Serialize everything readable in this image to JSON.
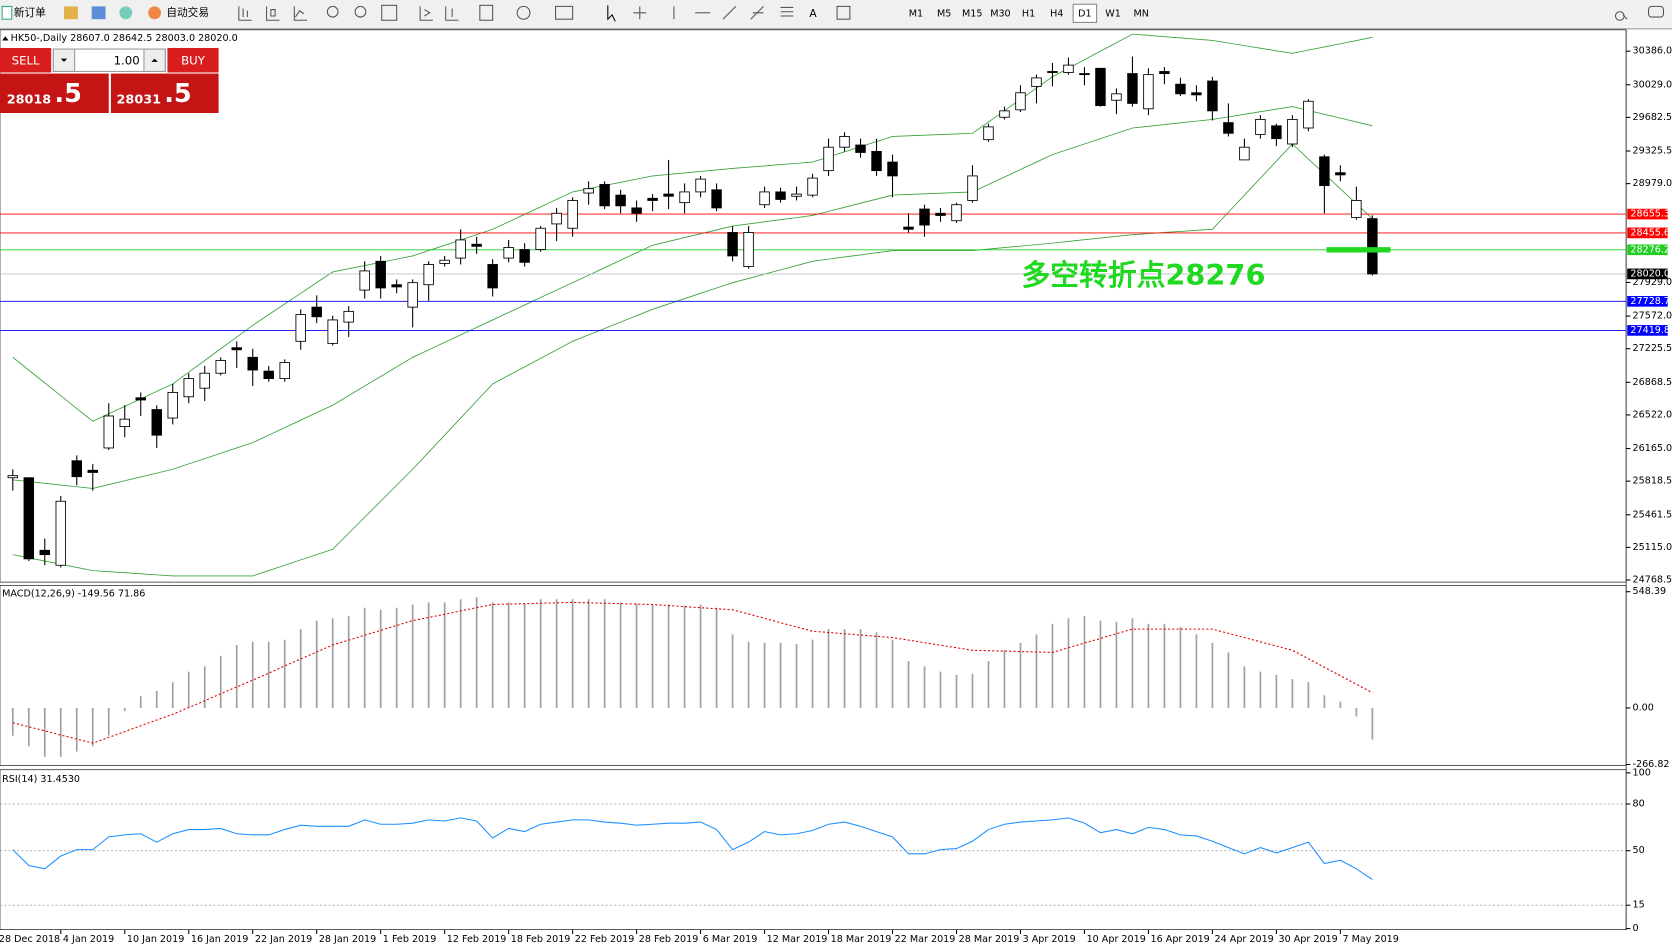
{
  "toolbar": {
    "new_order": "新订单",
    "auto_trading": "自动交易",
    "timeframes": [
      "M1",
      "M5",
      "M15",
      "M30",
      "H1",
      "H4",
      "D1",
      "W1",
      "MN"
    ],
    "active_timeframe": 6
  },
  "trade": {
    "sell": "SELL",
    "buy": "BUY",
    "volume": "1.00",
    "bid": "28018",
    "bid_frac": ".5",
    "ask": "28031",
    "ask_frac": ".5"
  },
  "chart": {
    "header": "HK50-,Daily  28607.0 28642.5 28003.0 28020.0",
    "ylim": [
      24746,
      30612.5
    ],
    "yticks": [
      {
        "value": 30386,
        "label": "30386.0"
      },
      {
        "value": 30029,
        "label": "30029.0"
      },
      29682.5,
      29325.5,
      {
        "value": 28979,
        "label": "28979.0"
      },
      {
        "value": 27929,
        "label": "27929.0"
      },
      {
        "value": 27572,
        "label": "27572.0"
      },
      27225.5,
      26868.5,
      {
        "value": 26522,
        "label": "26522.0"
      },
      {
        "value": 26165,
        "label": "26165.0"
      },
      25818.5,
      25461.5,
      {
        "value": 25115,
        "label": "25115.0"
      },
      24768.5
    ],
    "up_color": "#ffffff",
    "down_color": "#000000",
    "open": [
      25855,
      25855,
      25084,
      24925,
      26035,
      25934,
      26171,
      26398,
      26704,
      26579,
      26489,
      26715,
      26806,
      26965,
      27236,
      27134,
      26987,
      26908,
      27304,
      27667,
      27282,
      27508,
      27848,
      28154,
      27905,
      27667,
      27905,
      28131,
      28188,
      28335,
      28120,
      28188,
      28279,
      28279,
      28551,
      28505,
      28879,
      28970,
      28857,
      28721,
      28823,
      28868,
      28777,
      28891,
      28913,
      28460,
      28098,
      28755,
      28891,
      28845,
      28857,
      29117,
      29366,
      29389,
      29321,
      29208,
      28517,
      28709,
      28664,
      28585,
      28800,
      29446,
      29684,
      29763,
      30012,
      30170,
      30159,
      30148,
      30204,
      29865,
      30148,
      29774,
      30170,
      30035,
      29944,
      30069,
      29627,
      29231,
      29502,
      29593,
      29400,
      29570,
      29264,
      29095,
      28619,
      28607
    ],
    "high": [
      25945,
      25855,
      25208,
      25662,
      26092,
      26002,
      26647,
      26625,
      26761,
      26625,
      26851,
      26965,
      27042,
      27134,
      27304,
      27225,
      27042,
      27112,
      27644,
      27792,
      27576,
      27678,
      28154,
      28211,
      27961,
      27961,
      28154,
      28211,
      28494,
      28415,
      28177,
      28381,
      28347,
      28528,
      28721,
      28834,
      29004,
      29004,
      28913,
      28800,
      28868,
      29231,
      28981,
      29061,
      28981,
      28528,
      28528,
      28947,
      28936,
      28947,
      29083,
      29457,
      29525,
      29457,
      29457,
      29287,
      28664,
      28755,
      28721,
      28777,
      29174,
      29616,
      29797,
      30024,
      30137,
      30261,
      30318,
      30216,
      30204,
      29990,
      30329,
      30204,
      30216,
      30103,
      30024,
      30114,
      29831,
      29457,
      29706,
      29616,
      29706,
      29876,
      29287,
      29174,
      28947,
      28642.5
    ],
    "low": [
      25718,
      24970,
      24925,
      24902,
      25775,
      25718,
      26149,
      26285,
      26511,
      26171,
      26421,
      26647,
      26670,
      26942,
      27021,
      26829,
      26874,
      26874,
      27214,
      27497,
      27259,
      27350,
      27758,
      27758,
      27814,
      27452,
      27735,
      28098,
      28120,
      28233,
      27780,
      28143,
      28098,
      28256,
      28369,
      28415,
      28755,
      28709,
      28664,
      28573,
      28687,
      28709,
      28664,
      28834,
      28687,
      28154,
      28075,
      28721,
      28777,
      28800,
      28834,
      29061,
      29321,
      29253,
      29061,
      28834,
      28460,
      28415,
      28573,
      28562,
      28777,
      29423,
      29661,
      29740,
      29831,
      30012,
      30137,
      30024,
      29797,
      29718,
      29797,
      29706,
      30035,
      29910,
      29854,
      29650,
      29480,
      29231,
      29457,
      29378,
      29366,
      29536,
      28664,
      29004,
      28596,
      28003
    ],
    "close": [
      25877,
      24993,
      25038,
      25605,
      25866,
      25911,
      26511,
      26477,
      26681,
      26307,
      26761,
      26908,
      26965,
      27100,
      27214,
      26999,
      26908,
      27078,
      27588,
      27565,
      27531,
      27622,
      28052,
      27871,
      27882,
      27927,
      28120,
      28165,
      28381,
      28313,
      27871,
      28301,
      28143,
      28505,
      28664,
      28800,
      28925,
      28743,
      28743,
      28664,
      28800,
      28845,
      28891,
      29027,
      28721,
      28211,
      28460,
      28891,
      28811,
      28868,
      29038,
      29366,
      29480,
      29310,
      29117,
      29061,
      28494,
      28539,
      28641,
      28755,
      29061,
      29582,
      29752,
      29944,
      30102,
      30159,
      30238,
      30137,
      29808,
      29933,
      29831,
      30137,
      30148,
      29933,
      29922,
      29752,
      29514,
      29366,
      29661,
      29457,
      29661,
      29854,
      28958,
      29072,
      28800,
      28020
    ],
    "bands": {
      "color": "#3aa03a",
      "upper": [
        27134,
        26998,
        26862,
        26726,
        26590,
        26455,
        26534,
        26613,
        26693,
        26772,
        26851,
        26976,
        27100,
        27225,
        27349,
        27474,
        27587,
        27700,
        27814,
        27927,
        28041,
        28075,
        28109,
        28143,
        28177,
        28211,
        28268,
        28324,
        28381,
        28437,
        28494,
        28573,
        28653,
        28732,
        28812,
        28891,
        28925,
        28959,
        28993,
        29027,
        29061,
        29077,
        29093,
        29108,
        29124,
        29140,
        29154,
        29167,
        29181,
        29194,
        29208,
        29262,
        29317,
        29371,
        29426,
        29480,
        29487,
        29494,
        29500,
        29507,
        29514,
        29634,
        29754,
        29874,
        29994,
        30114,
        30205,
        30295,
        30386,
        30476,
        30567,
        30554,
        30540,
        30527,
        30513,
        30500,
        30473,
        30445,
        30418,
        30390,
        30363,
        30397,
        30431,
        30465,
        30499,
        30533
      ],
      "middle": [
        25832,
        25814,
        25796,
        25777,
        25759,
        25741,
        25782,
        25823,
        25863,
        25904,
        25945,
        26002,
        26058,
        26115,
        26171,
        26228,
        26307,
        26387,
        26466,
        26546,
        26625,
        26727,
        26829,
        26930,
        27032,
        27134,
        27213,
        27293,
        27372,
        27452,
        27531,
        27610,
        27689,
        27769,
        27848,
        27927,
        28006,
        28086,
        28165,
        28245,
        28324,
        28365,
        28406,
        28446,
        28487,
        28528,
        28551,
        28573,
        28596,
        28618,
        28641,
        28684,
        28727,
        28771,
        28814,
        28857,
        28864,
        28871,
        28877,
        28884,
        28891,
        28970,
        29049,
        29129,
        29208,
        29287,
        29344,
        29400,
        29457,
        29513,
        29570,
        29588,
        29606,
        29625,
        29643,
        29661,
        29688,
        29715,
        29743,
        29770,
        29797,
        29756,
        29715,
        29675,
        29634,
        29593
      ],
      "lower": [
        25038,
        25004,
        24970,
        24936,
        24902,
        24868,
        24857,
        24846,
        24834,
        24823,
        24812,
        24812,
        24812,
        24812,
        24812,
        24812,
        24869,
        24925,
        24982,
        25038,
        25095,
        25265,
        25435,
        25605,
        25775,
        25945,
        26126,
        26307,
        26489,
        26670,
        26851,
        26942,
        27032,
        27123,
        27213,
        27304,
        27372,
        27440,
        27508,
        27576,
        27644,
        27701,
        27757,
        27814,
        27870,
        27927,
        27972,
        28018,
        28063,
        28109,
        28154,
        28177,
        28200,
        28222,
        28245,
        28268,
        28268,
        28268,
        28268,
        28268,
        28268,
        28284,
        28300,
        28315,
        28331,
        28347,
        28365,
        28383,
        28401,
        28419,
        28437,
        28448,
        28460,
        28471,
        28483,
        28494,
        28675,
        28856,
        29037,
        29219,
        29400,
        29241,
        29083,
        28924,
        28766,
        28607
      ]
    },
    "hlines": [
      {
        "value": 28655.3,
        "label": "28655.3",
        "color": "#ff0000"
      },
      {
        "value": 28455.6,
        "label": "28455.6",
        "color": "#ff0000"
      },
      {
        "value": 28276.2,
        "label": "28276.2",
        "color": "#22cc22"
      },
      {
        "value": 28020,
        "label": "28020.0",
        "color": "#000000",
        "line_color": "#c0c0c0"
      },
      {
        "value": 27728.7,
        "label": "27728.7",
        "color": "#0000ff"
      },
      {
        "value": 27419.8,
        "label": "27419.8",
        "color": "#0000ff"
      }
    ],
    "annotation": {
      "text": "多空转折点28276",
      "value": 28276,
      "color": "#1fd81f"
    },
    "dates": [
      "28 Dec 2018",
      "4 Jan 2019",
      "10 Jan 2019",
      "16 Jan 2019",
      "22 Jan 2019",
      "28 Jan 2019",
      "1 Feb 2019",
      "12 Feb 2019",
      "18 Feb 2019",
      "22 Feb 2019",
      "28 Feb 2019",
      "6 Mar 2019",
      "12 Mar 2019",
      "18 Mar 2019",
      "22 Mar 2019",
      "28 Mar 2019",
      "3 Apr 2019",
      "10 Apr 2019",
      "16 Apr 2019",
      "24 Apr 2019",
      "30 Apr 2019",
      "7 May 2019"
    ]
  },
  "macd": {
    "label": "MACD(12,26,9) -149.56 71.86",
    "ylim": [
      -271.6,
      578.6
    ],
    "yticks": [
      548.39,
      {
        "value": 0,
        "label": "0.00"
      },
      -266.82
    ],
    "histogram_color": "#a0a0a0",
    "signal_color": "#e00000",
    "histogram": [
      -131,
      -181,
      -231,
      -231,
      -206,
      -181,
      -131,
      -15,
      55,
      80,
      121,
      171,
      196,
      246,
      297,
      312,
      312,
      322,
      372,
      412,
      423,
      433,
      473,
      463,
      473,
      488,
      498,
      498,
      513,
      523,
      498,
      498,
      493,
      513,
      513,
      513,
      513,
      513,
      498,
      493,
      488,
      488,
      483,
      488,
      473,
      347,
      312,
      307,
      307,
      302,
      322,
      372,
      372,
      372,
      357,
      322,
      221,
      196,
      171,
      156,
      161,
      221,
      272,
      307,
      347,
      397,
      423,
      433,
      412,
      407,
      423,
      397,
      397,
      382,
      347,
      307,
      262,
      196,
      171,
      156,
      136,
      121,
      60,
      30,
      -40,
      -149.56
    ],
    "signal": [
      -70,
      -89,
      -108,
      -128,
      -147,
      -166,
      -139,
      -112,
      -84,
      -57,
      -30,
      2,
      34,
      67,
      99,
      131,
      164,
      198,
      231,
      264,
      297,
      320,
      343,
      366,
      389,
      412,
      427,
      442,
      458,
      473,
      488,
      490,
      492,
      494,
      496,
      498,
      496,
      494,
      492,
      490,
      488,
      483,
      478,
      473,
      468,
      463,
      443,
      423,
      402,
      382,
      362,
      356,
      350,
      344,
      338,
      332,
      320,
      308,
      296,
      284,
      272,
      270,
      268,
      266,
      264,
      262,
      284,
      306,
      328,
      350,
      372,
      372,
      372,
      372,
      372,
      372,
      352,
      332,
      312,
      292,
      272,
      232,
      192,
      152,
      112,
      71.86
    ]
  },
  "rsi": {
    "label": "RSI(14) 31.4530",
    "ylim": [
      -0.7,
      102
    ],
    "yticks": [
      100,
      80,
      50,
      15,
      0
    ],
    "levels": [
      80,
      50,
      15
    ],
    "color": "#1e90ff",
    "values": [
      50.7,
      40.5,
      38.4,
      46.6,
      50.7,
      50.7,
      58.9,
      60.2,
      60.9,
      55.5,
      60.9,
      63.6,
      63.6,
      64.3,
      60.9,
      60.2,
      60.2,
      63.6,
      66.4,
      65.7,
      65.7,
      65.7,
      69.8,
      67.0,
      67.0,
      67.7,
      69.8,
      69.1,
      71.1,
      69.1,
      58.2,
      64.3,
      62.3,
      67.0,
      68.4,
      69.8,
      69.8,
      68.4,
      67.7,
      66.4,
      67.0,
      67.7,
      67.7,
      68.4,
      63.6,
      50.7,
      55.5,
      62.3,
      60.2,
      60.9,
      63.0,
      67.0,
      68.4,
      65.7,
      62.3,
      58.9,
      48.0,
      48.0,
      50.7,
      51.4,
      56.1,
      63.6,
      67.0,
      68.4,
      69.1,
      69.8,
      71.1,
      67.7,
      61.6,
      63.6,
      60.9,
      65.0,
      63.6,
      60.2,
      59.5,
      56.1,
      52.0,
      48.0,
      52.0,
      48.6,
      52.0,
      55.5,
      41.8,
      43.9,
      38.4,
      31.453
    ]
  }
}
